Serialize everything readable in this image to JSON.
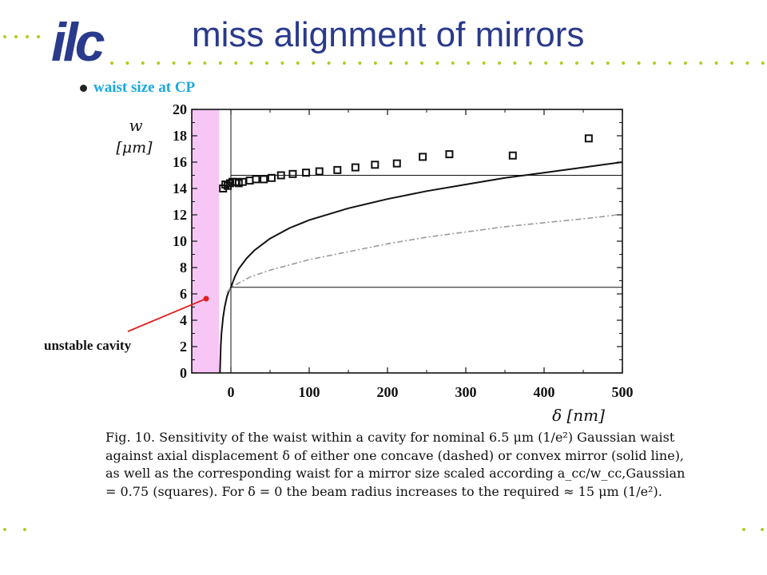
{
  "slide": {
    "title": "miss alignment of mirrors",
    "logo_text": "ilc",
    "bullet": "waist size at CP",
    "annotation": "unstable cavity",
    "caption": "Fig. 10. Sensitivity of the waist within a cavity for nominal 6.5 μm (1/e²) Gaussian waist against axial displacement δ of either one concave (dashed) or convex mirror (solid line), as well as the corresponding waist for a mirror size scaled according a_cc/w_cc,Gaussian = 0.75 (squares). For δ = 0 the beam radius increases to the required ≈ 15 μm (1/e²).",
    "colors": {
      "title": "#2a3a8c",
      "bullet": "#1aa8e0",
      "logo": "#2a3a8c",
      "dots": "#b8c820",
      "unstable_band": "#f7c6f5",
      "arrow": "#e02020"
    }
  },
  "chart_data": {
    "type": "scatter",
    "ylabel_line1": "w",
    "ylabel_line2": "[μm]",
    "xlabel": "δ [nm]",
    "xlim": [
      -50,
      500
    ],
    "ylim": [
      0,
      20
    ],
    "x_ticks": [
      0,
      100,
      200,
      300,
      400,
      500
    ],
    "y_ticks": [
      0,
      2,
      4,
      6,
      8,
      10,
      12,
      14,
      16,
      18,
      20
    ],
    "unstable_region": [
      -50,
      -15
    ],
    "hlines": [
      6.5,
      15
    ],
    "vline": 0,
    "series": [
      {
        "style": "squares",
        "x": [
          -10,
          -7,
          -4,
          -1,
          2,
          6,
          10,
          15,
          24,
          32,
          42,
          52,
          64,
          79,
          96,
          113,
          136,
          159,
          184,
          212,
          245,
          279,
          360,
          457
        ],
        "values": [
          14.0,
          14.3,
          14.2,
          14.4,
          14.5,
          14.5,
          14.4,
          14.5,
          14.6,
          14.7,
          14.7,
          14.8,
          15.0,
          15.1,
          15.2,
          15.3,
          15.4,
          15.6,
          15.8,
          15.9,
          16.4,
          16.6,
          16.5,
          17.8
        ]
      },
      {
        "style": "solid",
        "x": [
          -14,
          -13,
          -12,
          -10,
          -8,
          -5,
          -2,
          0,
          5,
          10,
          20,
          30,
          50,
          75,
          100,
          150,
          200,
          250,
          300,
          350,
          400,
          450,
          500
        ],
        "values": [
          0,
          2.0,
          3.0,
          4.2,
          5.0,
          5.8,
          6.3,
          6.5,
          7.3,
          7.9,
          8.7,
          9.3,
          10.2,
          11.0,
          11.6,
          12.5,
          13.2,
          13.8,
          14.3,
          14.8,
          15.2,
          15.6,
          16.0
        ]
      },
      {
        "style": "dashed",
        "x": [
          -5,
          0,
          25,
          50,
          100,
          150,
          200,
          250,
          300,
          350,
          400,
          450,
          480,
          493
        ],
        "values": [
          6.1,
          6.5,
          7.3,
          7.8,
          8.6,
          9.2,
          9.8,
          10.3,
          10.7,
          11.1,
          11.4,
          11.7,
          11.9,
          12.0
        ]
      }
    ]
  }
}
